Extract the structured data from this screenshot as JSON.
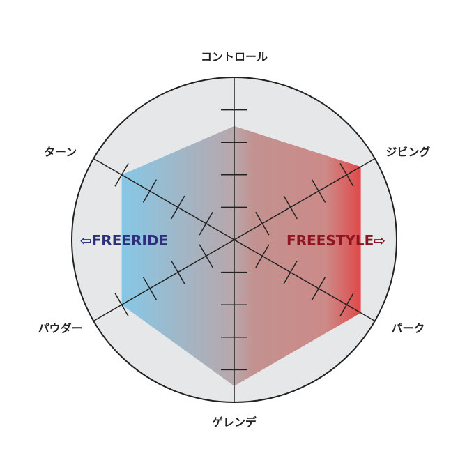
{
  "chart_data": {
    "type": "radar",
    "axes": [
      "コントロール",
      "ジビング",
      "パーク",
      "ゲレンデ",
      "パウダー",
      "ターン"
    ],
    "values": [
      3.5,
      4.5,
      4.5,
      4.5,
      4,
      4
    ],
    "rlim": [
      0,
      5
    ],
    "ticks": [
      1,
      2,
      3,
      4
    ],
    "annotations": {
      "left": "⇦FREERIDE",
      "right": "FREESTYLE⇨"
    },
    "colors": {
      "background": "#e6e7e8",
      "freeride": "#86c8e6",
      "center": "#b8a7ab",
      "freestyle": "#e04848",
      "freeride_text": "#2e2f7a",
      "freestyle_text": "#8e1420"
    }
  }
}
